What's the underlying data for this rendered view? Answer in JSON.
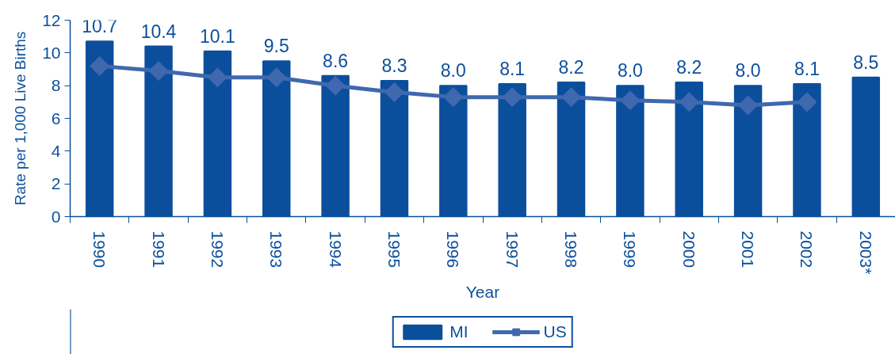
{
  "chart_data": {
    "type": "bar",
    "xlabel": "Year",
    "ylabel": "Rate per 1,000 Live Births",
    "categories": [
      "1990",
      "1991",
      "1992",
      "1993",
      "1994",
      "1995",
      "1996",
      "1997",
      "1998",
      "1999",
      "2000",
      "2001",
      "2002",
      "2003*"
    ],
    "ylim": [
      0,
      12
    ],
    "yticks": [
      0,
      2,
      4,
      6,
      8,
      10,
      12
    ],
    "legend": "bottom",
    "series": [
      {
        "name": "MI",
        "color": "#0b4f9c",
        "values": [
          10.7,
          10.4,
          10.1,
          9.5,
          8.6,
          8.3,
          8.0,
          8.1,
          8.2,
          8.0,
          8.2,
          8.0,
          8.1,
          8.5
        ],
        "value_labels": [
          "10.7",
          "10.4",
          "10.1",
          "9.5",
          "8.6",
          "8.3",
          "8.0",
          "8.1",
          "8.2",
          "8.0",
          "8.2",
          "8.0",
          "8.1",
          "8.5"
        ]
      },
      {
        "name": "US",
        "type": "line",
        "color": "#3f68ae",
        "marker": "diamond",
        "values": [
          9.2,
          8.9,
          8.5,
          8.5,
          8.0,
          7.6,
          7.3,
          7.3,
          7.3,
          7.1,
          7.0,
          6.8,
          7.0,
          null
        ]
      }
    ]
  }
}
